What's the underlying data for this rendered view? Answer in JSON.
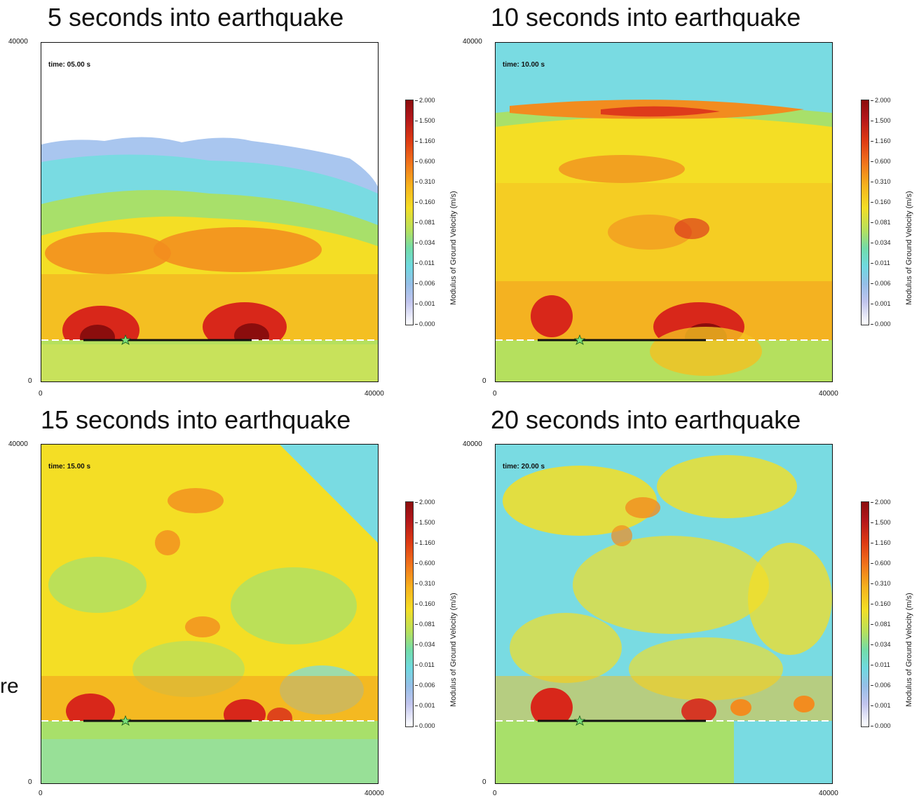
{
  "panels": [
    {
      "title": "5 seconds into earthquake",
      "time_label": "time: 05.00 s",
      "wave_front": 0.3
    },
    {
      "title": "10 seconds into earthquake",
      "time_label": "time: 10.00 s",
      "wave_front": 0.0
    },
    {
      "title": "15 seconds into earthquake",
      "time_label": "time: 15.00 s",
      "wave_front": 0.0
    },
    {
      "title": "20 seconds into earthquake",
      "time_label": "time: 20.00 s",
      "wave_front": 0.0
    }
  ],
  "axis": {
    "y_max": "40000",
    "y_min": "0",
    "x_min": "0",
    "x_max": "40000"
  },
  "colorbar": {
    "label": "Modulus of Ground Velocity (m/s)",
    "ticks": [
      "2.000",
      "1.500",
      "1.160",
      "0.600",
      "0.310",
      "0.160",
      "0.081",
      "0.034",
      "0.011",
      "0.006",
      "0.001",
      "0.000"
    ]
  },
  "edge_text": "re",
  "colors": {
    "dark_red": "#8b0d0d",
    "red": "#d8271a",
    "orange": "#f28c1f",
    "yellow": "#f4de25",
    "green": "#a8e06a",
    "cyan": "#79dbe2",
    "light_blue": "#a9c6ef",
    "white": "#ffffff"
  }
}
